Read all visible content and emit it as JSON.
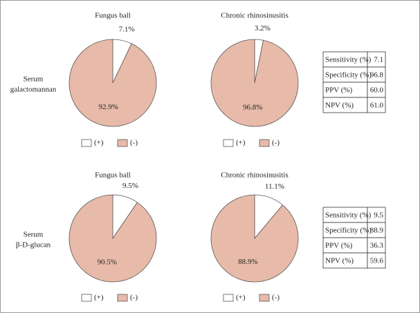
{
  "chart_data": [
    {
      "type": "pie",
      "title": "Fungus ball",
      "categories": [
        "(+)",
        "(-)"
      ],
      "values": [
        7.1,
        92.9
      ],
      "value_labels": [
        "7.1%",
        "92.9%"
      ],
      "colors": [
        "#ffffff",
        "#e8baa9"
      ]
    },
    {
      "type": "pie",
      "title": "Chronic rhinosinusitis",
      "categories": [
        "(+)",
        "(-)"
      ],
      "values": [
        3.2,
        96.8
      ],
      "value_labels": [
        "3.2%",
        "96.8%"
      ],
      "colors": [
        "#ffffff",
        "#e8baa9"
      ]
    },
    {
      "type": "pie",
      "title": "Fungus ball",
      "categories": [
        "(+)",
        "(-)"
      ],
      "values": [
        9.5,
        90.5
      ],
      "value_labels": [
        "9.5%",
        "90.5%"
      ],
      "colors": [
        "#ffffff",
        "#e8baa9"
      ]
    },
    {
      "type": "pie",
      "title": "Chronic rhinosinusitis",
      "categories": [
        "(+)",
        "(-)"
      ],
      "values": [
        11.1,
        88.9
      ],
      "value_labels": [
        "11.1%",
        "88.9%"
      ],
      "colors": [
        "#ffffff",
        "#e8baa9"
      ]
    }
  ],
  "panels": [
    {
      "label": [
        "Serum",
        "galactomannan"
      ],
      "table": [
        [
          "Sensitivity (%)",
          "7.1"
        ],
        [
          "Specificity (%)",
          "96.8"
        ],
        [
          "PPV (%)",
          "60.0"
        ],
        [
          "NPV (%)",
          "61.0"
        ]
      ]
    },
    {
      "label": [
        "Serum",
        "β-D-glucan"
      ],
      "table": [
        [
          "Sensitivity (%)",
          "9.5"
        ],
        [
          "Specificity (%)",
          "88.9"
        ],
        [
          "PPV (%)",
          "36.3"
        ],
        [
          "NPV (%)",
          "59.6"
        ]
      ]
    }
  ]
}
